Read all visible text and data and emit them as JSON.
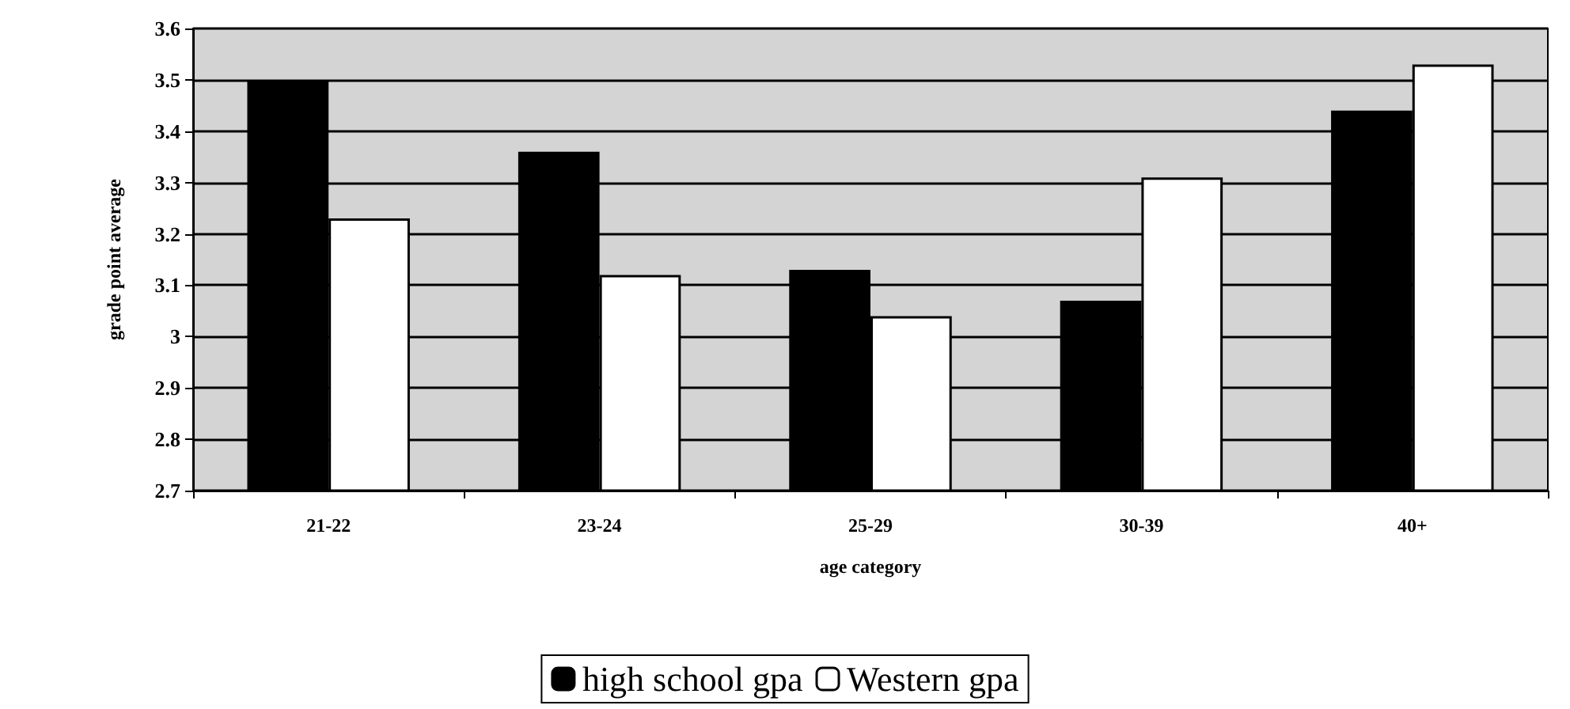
{
  "chart_data": {
    "type": "bar",
    "xlabel": "age category",
    "ylabel": "grade point average",
    "categories": [
      "21-22",
      "23-24",
      "25-29",
      "30-39",
      "40+"
    ],
    "series": [
      {
        "name": "high school gpa",
        "color": "#000000",
        "values": [
          3.5,
          3.36,
          3.13,
          3.07,
          3.44
        ]
      },
      {
        "name": "Western gpa",
        "color": "#ffffff",
        "values": [
          3.23,
          3.12,
          3.04,
          3.31,
          3.53
        ]
      }
    ],
    "ylim": [
      2.7,
      3.6
    ],
    "yticks": [
      2.7,
      2.8,
      2.9,
      3,
      3.1,
      3.2,
      3.3,
      3.4,
      3.5,
      3.6
    ],
    "grid": "y",
    "legend": "bottom"
  }
}
